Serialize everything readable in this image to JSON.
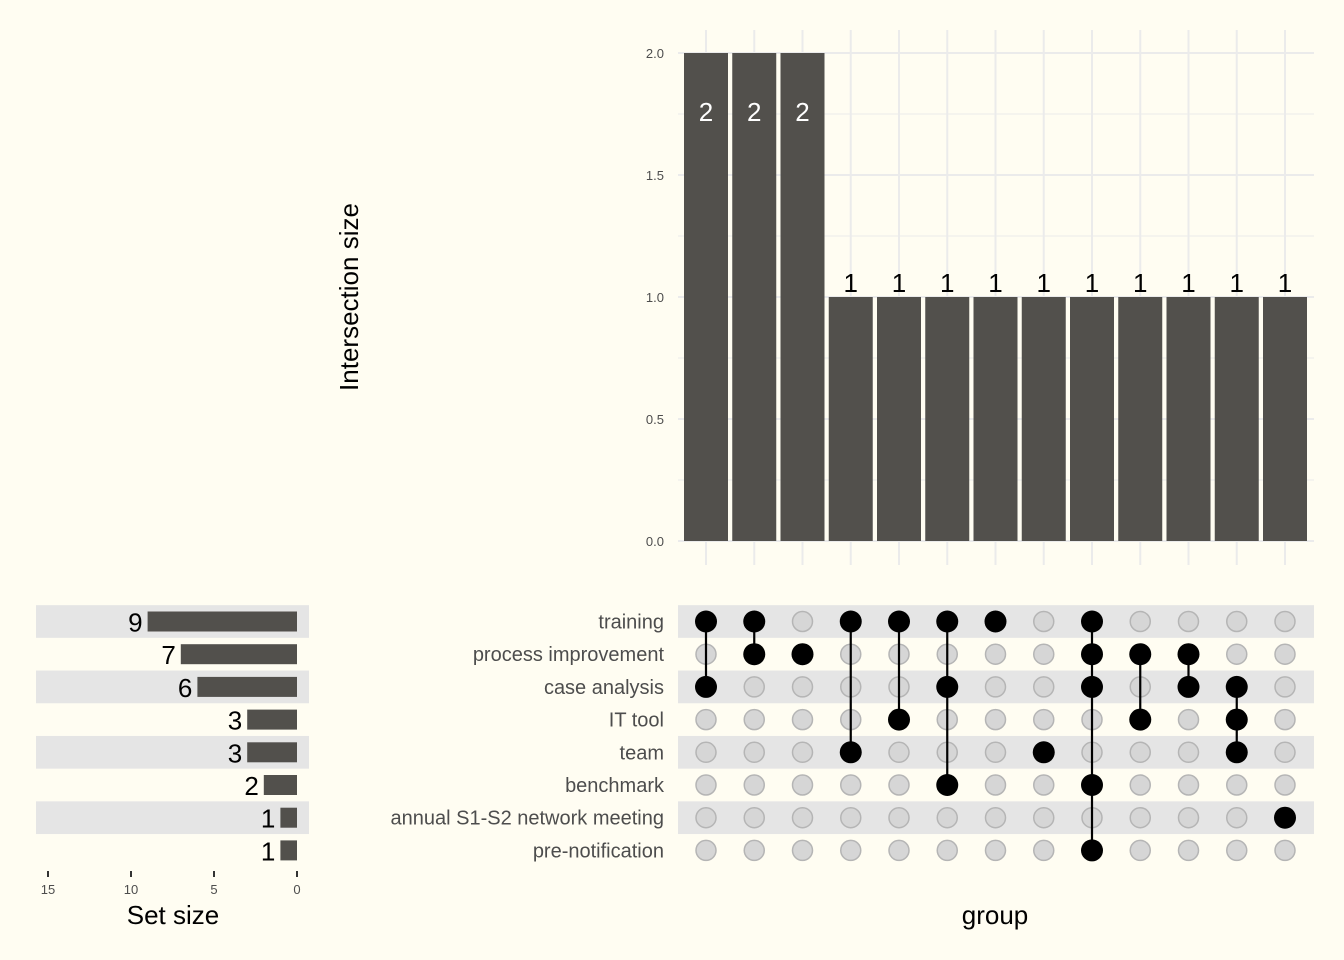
{
  "chart_data": {
    "type": "upset",
    "intersections": {
      "ylabel": "Intersection size",
      "xlabel": "group",
      "ylim": [
        0,
        2
      ],
      "yticks": [
        "0.0",
        "0.5",
        "1.0",
        "1.5",
        "2.0"
      ],
      "ytick_values": [
        0,
        0.5,
        1,
        1.5,
        2
      ],
      "values": [
        2,
        2,
        2,
        1,
        1,
        1,
        1,
        1,
        1,
        1,
        1,
        1,
        1
      ],
      "labels": [
        "2",
        "2",
        "2",
        "1",
        "1",
        "1",
        "1",
        "1",
        "1",
        "1",
        "1",
        "1",
        "1"
      ]
    },
    "sets": {
      "names": [
        "training",
        "process improvement",
        "case analysis",
        "IT tool",
        "team",
        "benchmark",
        "annual S1-S2 network meeting",
        "pre-notification"
      ],
      "sizes": [
        9,
        7,
        6,
        3,
        3,
        2,
        1,
        1
      ],
      "size_labels": [
        "9",
        "7",
        "6",
        "3",
        "3",
        "2",
        "1",
        "1"
      ],
      "xlabel": "Set size",
      "xticks": [
        "15",
        "10",
        "5",
        "0"
      ],
      "xtick_values": [
        15,
        10,
        5,
        0
      ],
      "xlim": [
        0,
        16
      ]
    },
    "matrix": [
      [
        "training",
        "case analysis"
      ],
      [
        "training",
        "process improvement"
      ],
      [
        "process improvement"
      ],
      [
        "training",
        "team"
      ],
      [
        "training",
        "IT tool"
      ],
      [
        "training",
        "case analysis",
        "benchmark"
      ],
      [
        "training"
      ],
      [
        "team"
      ],
      [
        "training",
        "process improvement",
        "case analysis",
        "benchmark",
        "pre-notification"
      ],
      [
        "process improvement",
        "IT tool"
      ],
      [
        "process improvement",
        "case analysis"
      ],
      [
        "case analysis",
        "IT tool",
        "team"
      ],
      [
        "annual S1-S2 network meeting"
      ]
    ],
    "colors": {
      "bar": "#52504c",
      "background": "#fffdf2",
      "stripe": "#e5e5e5",
      "grid": "#ebebeb",
      "dot_active": "#000000",
      "dot_inactive": "#d6d6d6"
    }
  }
}
